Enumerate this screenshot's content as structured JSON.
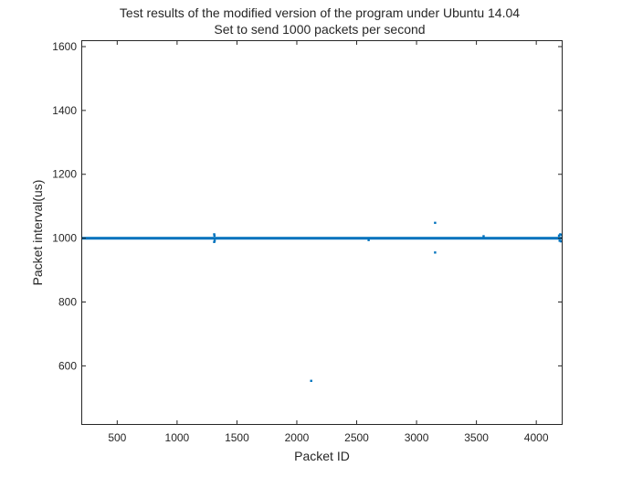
{
  "chart_data": {
    "type": "scatter",
    "title": "Test results of the modified version of the program under Ubuntu 14.04",
    "subtitle": "Set to send 1000 packets per second",
    "xlabel": "Packet ID",
    "ylabel": "Packet interval(us)",
    "xlim": [
      200,
      4220
    ],
    "ylim": [
      415,
      1620
    ],
    "xticks": [
      500,
      1000,
      1500,
      2000,
      2500,
      3000,
      3500,
      4000
    ],
    "yticks": [
      600,
      800,
      1000,
      1200,
      1400,
      1600
    ],
    "grid": false,
    "series": [
      {
        "name": "Packet interval",
        "color": "#0072BD",
        "baseline": {
          "x_start": 200,
          "x_end": 4220,
          "y": 1000,
          "spread": 4
        },
        "points": [
          {
            "x": 1310,
            "y": 1012
          },
          {
            "x": 1310,
            "y": 988
          },
          {
            "x": 1312,
            "y": 1008
          },
          {
            "x": 1314,
            "y": 992
          },
          {
            "x": 2120,
            "y": 553
          },
          {
            "x": 2600,
            "y": 994
          },
          {
            "x": 3155,
            "y": 1048
          },
          {
            "x": 3155,
            "y": 955
          },
          {
            "x": 3560,
            "y": 1006
          },
          {
            "x": 4190,
            "y": 1008
          },
          {
            "x": 4195,
            "y": 992
          },
          {
            "x": 4200,
            "y": 1012
          },
          {
            "x": 4205,
            "y": 990
          },
          {
            "x": 4210,
            "y": 1010
          }
        ]
      }
    ]
  }
}
